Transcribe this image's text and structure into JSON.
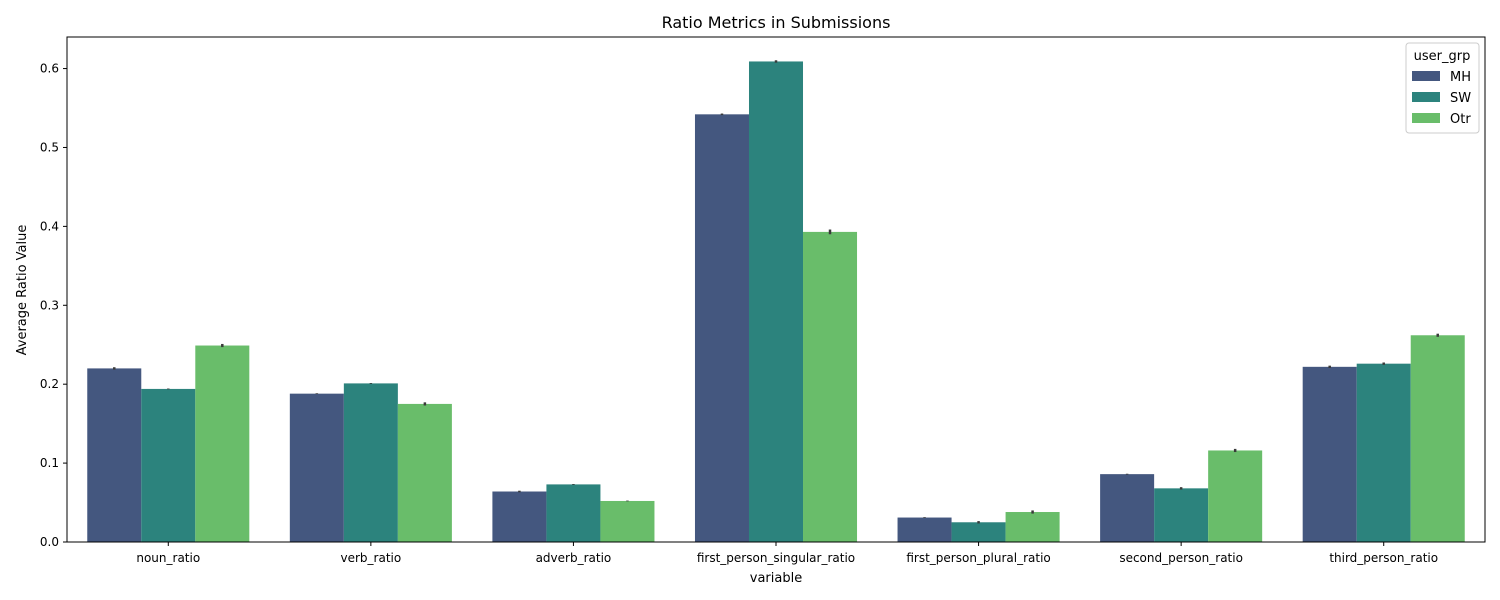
{
  "chart_data": {
    "type": "bar",
    "title": "Ratio Metrics in Submissions",
    "xlabel": "variable",
    "ylabel": "Average Ratio Value",
    "ylim": [
      0,
      0.64
    ],
    "yticks": [
      "0.0",
      "0.1",
      "0.2",
      "0.3",
      "0.4",
      "0.5",
      "0.6"
    ],
    "categories": [
      "noun_ratio",
      "verb_ratio",
      "adverb_ratio",
      "first_person_singular_ratio",
      "first_person_plural_ratio",
      "second_person_ratio",
      "third_person_ratio"
    ],
    "legend_title": "user_grp",
    "legend_position": "top-right",
    "grid": false,
    "series": [
      {
        "name": "MH",
        "color": "#44577f",
        "values": [
          0.22,
          0.188,
          0.064,
          0.542,
          0.031,
          0.086,
          0.222
        ],
        "errors": [
          0.0015,
          0.0005,
          0.001,
          0.001,
          0.0005,
          0.0005,
          0.0015
        ]
      },
      {
        "name": "SW",
        "color": "#2c837d",
        "values": [
          0.194,
          0.201,
          0.073,
          0.609,
          0.025,
          0.068,
          0.226
        ],
        "errors": [
          0.0005,
          0.0005,
          0.0005,
          0.0015,
          0.0015,
          0.0015,
          0.0015
        ]
      },
      {
        "name": "Otr",
        "color": "#69bd6a",
        "values": [
          0.249,
          0.175,
          0.052,
          0.393,
          0.038,
          0.116,
          0.262
        ],
        "errors": [
          0.002,
          0.002,
          0.0005,
          0.003,
          0.002,
          0.002,
          0.002
        ]
      }
    ]
  }
}
